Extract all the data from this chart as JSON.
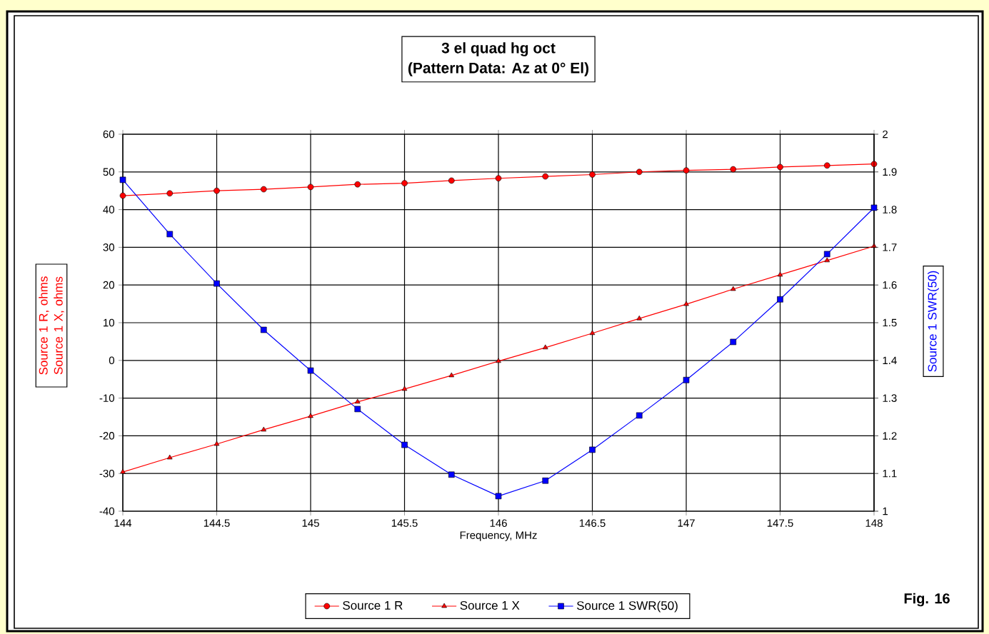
{
  "chart_data": {
    "type": "line",
    "title": "3 el quad hg oct",
    "subtitle": "(Pattern Data: Az at 0° El)",
    "xlabel": "Frequency, MHz",
    "ylabel": "Source 1 R,  ohms Source 1 X,  ohms",
    "y2label": "Source 1 SWR(50)",
    "x": [
      144,
      144.25,
      144.5,
      144.75,
      145,
      145.25,
      145.5,
      145.75,
      146,
      146.25,
      146.5,
      146.75,
      147,
      147.25,
      147.5,
      147.75,
      148
    ],
    "series": [
      {
        "name": "Source 1 R",
        "color": "#ff0000",
        "marker": "circle",
        "values": [
          43.7,
          44.3,
          45.0,
          45.4,
          46.0,
          46.7,
          47.0,
          47.7,
          48.3,
          48.8,
          49.3,
          50.0,
          50.4,
          50.7,
          51.3,
          51.7,
          52.1
        ]
      },
      {
        "name": "Source 1 X",
        "color": "#ff0000",
        "marker": "triangle",
        "values": [
          -29.6,
          -25.8,
          -22.2,
          -18.4,
          -14.8,
          -11.0,
          -7.6,
          -4.0,
          -0.2,
          3.4,
          7.2,
          11.1,
          14.9,
          18.9,
          22.7,
          26.5,
          30.3
        ]
      },
      {
        "name": "Source 1 SWR(50)",
        "color": "#0000ff",
        "marker": "square",
        "axis": "y2",
        "values": [
          1.879,
          1.735,
          1.604,
          1.481,
          1.373,
          1.271,
          1.176,
          1.097,
          1.04,
          1.081,
          1.163,
          1.254,
          1.348,
          1.449,
          1.562,
          1.682,
          1.805
        ]
      }
    ],
    "xlim": [
      144,
      148
    ],
    "xticks": [
      144,
      144.5,
      145,
      145.5,
      146,
      146.5,
      147,
      147.5,
      148
    ],
    "ylim": [
      -40,
      60
    ],
    "yticks": [
      -40,
      -30,
      -20,
      -10,
      0,
      10,
      20,
      30,
      40,
      50,
      60
    ],
    "y2lim": [
      1,
      2
    ],
    "y2ticks": [
      1,
      1.1,
      1.2,
      1.3,
      1.4,
      1.5,
      1.6,
      1.7,
      1.8,
      1.9,
      2
    ],
    "grid": true,
    "legend": "bottom",
    "line_style": "solid",
    "annotations": [
      "Fig. 16"
    ]
  }
}
